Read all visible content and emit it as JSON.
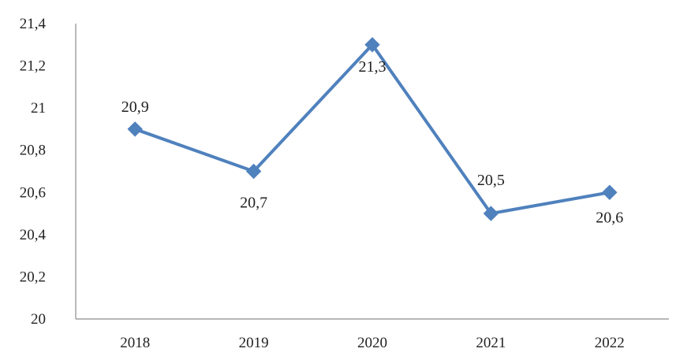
{
  "chart_data": {
    "type": "line",
    "title": "",
    "xlabel": "",
    "ylabel": "",
    "categories": [
      "2018",
      "2019",
      "2020",
      "2021",
      "2022"
    ],
    "series": [
      {
        "values": [
          20.9,
          20.7,
          21.3,
          20.5,
          20.6
        ],
        "data_labels": [
          "20,9",
          "20,7",
          "21,3",
          "20,5",
          "20,6"
        ],
        "color": "#4f81bd",
        "marker": "diamond"
      }
    ],
    "ylim": [
      20,
      21.4
    ],
    "yticks": [
      20,
      20.2,
      20.4,
      20.6,
      20.8,
      21,
      21.2,
      21.4
    ],
    "ytick_labels": [
      "20",
      "20,2",
      "20,4",
      "20,6",
      "20,8",
      "21",
      "21,2",
      "21,4"
    ],
    "grid": false,
    "legend": "none"
  }
}
